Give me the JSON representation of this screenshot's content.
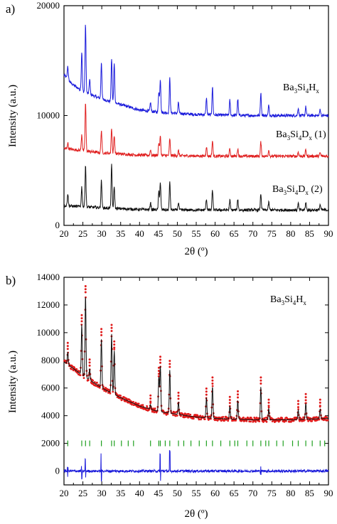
{
  "chart_data": [
    {
      "panel_label": "a)",
      "type": "line",
      "ylabel": "Intensity (a.u.)",
      "xlabel": "2θ (º)",
      "xlim": [
        20,
        90
      ],
      "ylim": [
        0,
        20000
      ],
      "xticks": [
        "20",
        "25",
        "30",
        "35",
        "40",
        "45",
        "50",
        "55",
        "60",
        "65",
        "70",
        "75",
        "80",
        "85",
        "90"
      ],
      "yticks": [
        "0",
        "10000",
        "20000"
      ],
      "ytick_values": [
        0,
        10000,
        20000
      ],
      "grid": false,
      "series": [
        {
          "name": "Ba3Si4Hx",
          "label_main": "Ba",
          "label_parts": [
            "3",
            "Si",
            "4",
            "H",
            "x"
          ],
          "color": "#1a1adb",
          "background": [
            [
              20,
              13700
            ],
            [
              22,
              12900
            ],
            [
              25,
              12200
            ],
            [
              30,
              11500
            ],
            [
              35,
              11000
            ],
            [
              40,
              10500
            ],
            [
              45,
              10300
            ],
            [
              50,
              10200
            ],
            [
              55,
              10100
            ],
            [
              60,
              10050
            ],
            [
              70,
              10000
            ],
            [
              80,
              10000
            ],
            [
              90,
              10000
            ]
          ],
          "peaks": [
            [
              21,
              14500
            ],
            [
              24.7,
              15800
            ],
            [
              25.7,
              18300
            ],
            [
              26.8,
              13300
            ],
            [
              29.9,
              14900
            ],
            [
              32.6,
              15200
            ],
            [
              33.3,
              14800
            ],
            [
              42.9,
              11200
            ],
            [
              45.1,
              12200
            ],
            [
              45.5,
              13300
            ],
            [
              48.0,
              13400
            ],
            [
              50.3,
              11200
            ],
            [
              57.7,
              11600
            ],
            [
              59.3,
              12600
            ],
            [
              63.9,
              11400
            ],
            [
              66.0,
              11500
            ],
            [
              72.1,
              12100
            ],
            [
              74.2,
              11000
            ],
            [
              82.0,
              10700
            ],
            [
              84.0,
              10800
            ],
            [
              87.8,
              10600
            ]
          ]
        },
        {
          "name": "Ba3Si4Dx (1)",
          "color": "#e02020",
          "background": [
            [
              20,
              7000
            ],
            [
              25,
              6800
            ],
            [
              30,
              6600
            ],
            [
              40,
              6400
            ],
            [
              50,
              6350
            ],
            [
              60,
              6300
            ],
            [
              70,
              6300
            ],
            [
              80,
              6300
            ],
            [
              90,
              6300
            ]
          ],
          "peaks": [
            [
              21,
              7500
            ],
            [
              24.7,
              8300
            ],
            [
              25.7,
              11200
            ],
            [
              29.9,
              8700
            ],
            [
              32.6,
              8900
            ],
            [
              33.3,
              8200
            ],
            [
              42.9,
              6900
            ],
            [
              45.1,
              7500
            ],
            [
              45.5,
              8100
            ],
            [
              48.0,
              7900
            ],
            [
              50.3,
              6800
            ],
            [
              57.7,
              7200
            ],
            [
              59.3,
              7700
            ],
            [
              63.9,
              7000
            ],
            [
              66.0,
              7000
            ],
            [
              72.1,
              7600
            ],
            [
              74.2,
              6900
            ],
            [
              82.0,
              6700
            ],
            [
              84.0,
              6900
            ],
            [
              87.8,
              6600
            ]
          ]
        },
        {
          "name": "Ba3Si4Dx (2)",
          "color": "#111111",
          "background": [
            [
              20,
              1800
            ],
            [
              25,
              1700
            ],
            [
              30,
              1600
            ],
            [
              40,
              1450
            ],
            [
              50,
              1400
            ],
            [
              60,
              1400
            ],
            [
              70,
              1400
            ],
            [
              80,
              1400
            ],
            [
              90,
              1400
            ]
          ],
          "peaks": [
            [
              21,
              2900
            ],
            [
              24.7,
              3500
            ],
            [
              25.7,
              5500
            ],
            [
              29.9,
              4100
            ],
            [
              32.6,
              5500
            ],
            [
              33.3,
              3500
            ],
            [
              42.9,
              2100
            ],
            [
              45.1,
              3100
            ],
            [
              45.5,
              3900
            ],
            [
              48.0,
              4000
            ],
            [
              50.3,
              2100
            ],
            [
              57.7,
              2400
            ],
            [
              59.3,
              3200
            ],
            [
              63.9,
              2300
            ],
            [
              66.0,
              2400
            ],
            [
              72.1,
              2900
            ],
            [
              74.2,
              2100
            ],
            [
              82.0,
              2000
            ],
            [
              84.0,
              2100
            ],
            [
              87.8,
              1900
            ]
          ]
        }
      ]
    },
    {
      "panel_label": "b)",
      "type": "line",
      "ylabel": "Intensity (a.u.)",
      "xlabel": "2θ (º)",
      "xlim": [
        20,
        90
      ],
      "ylim": [
        -1000,
        14000
      ],
      "xticks": [
        "20",
        "25",
        "30",
        "35",
        "40",
        "45",
        "50",
        "55",
        "60",
        "65",
        "70",
        "75",
        "80",
        "85",
        "90"
      ],
      "yticks": [
        "0",
        "2000",
        "4000",
        "6000",
        "8000",
        "10000",
        "12000",
        "14000"
      ],
      "ytick_values": [
        0,
        2000,
        4000,
        6000,
        8000,
        10000,
        12000,
        14000
      ],
      "grid": false,
      "legend_text": "Ba3Si4Hx",
      "series": [
        {
          "name": "observed",
          "color": "#e01b1b",
          "style": "points"
        },
        {
          "name": "calculated",
          "color": "#111111",
          "style": "line",
          "background": [
            [
              20,
              7900
            ],
            [
              22,
              7500
            ],
            [
              25,
              6900
            ],
            [
              30,
              6000
            ],
            [
              35,
              5300
            ],
            [
              40,
              4700
            ],
            [
              45,
              4300
            ],
            [
              50,
              4100
            ],
            [
              55,
              3900
            ],
            [
              60,
              3800
            ],
            [
              70,
              3700
            ],
            [
              80,
              3700
            ],
            [
              90,
              3800
            ]
          ],
          "peaks": [
            [
              21,
              8600
            ],
            [
              24.7,
              10600
            ],
            [
              25.7,
              12700
            ],
            [
              26.8,
              7400
            ],
            [
              29.9,
              9600
            ],
            [
              32.6,
              9900
            ],
            [
              33.3,
              8700
            ],
            [
              42.9,
              4800
            ],
            [
              45.1,
              6800
            ],
            [
              45.5,
              7600
            ],
            [
              48.0,
              7300
            ],
            [
              50.3,
              5000
            ],
            [
              57.7,
              5300
            ],
            [
              59.3,
              6100
            ],
            [
              63.9,
              4700
            ],
            [
              66.0,
              5100
            ],
            [
              72.1,
              6100
            ],
            [
              74.2,
              4500
            ],
            [
              82.0,
              4400
            ],
            [
              84.0,
              4900
            ],
            [
              87.8,
              4500
            ]
          ]
        },
        {
          "name": "bragg_positions",
          "color": "#1fa01f",
          "style": "ticks",
          "y": 2000,
          "x": [
            21.0,
            24.7,
            25.7,
            26.8,
            29.9,
            32.6,
            33.3,
            35.2,
            37.0,
            38.4,
            42.9,
            45.1,
            45.5,
            46.8,
            48.0,
            50.3,
            51.7,
            53.6,
            55.8,
            57.7,
            59.3,
            61.5,
            63.9,
            65.2,
            66.0,
            68.4,
            70.0,
            72.1,
            73.4,
            74.2,
            76.3,
            78.0,
            80.5,
            82.0,
            84.0,
            85.7,
            87.8,
            89.0
          ]
        },
        {
          "name": "difference",
          "color": "#1a1adb",
          "style": "line",
          "y": 0
        }
      ]
    }
  ]
}
